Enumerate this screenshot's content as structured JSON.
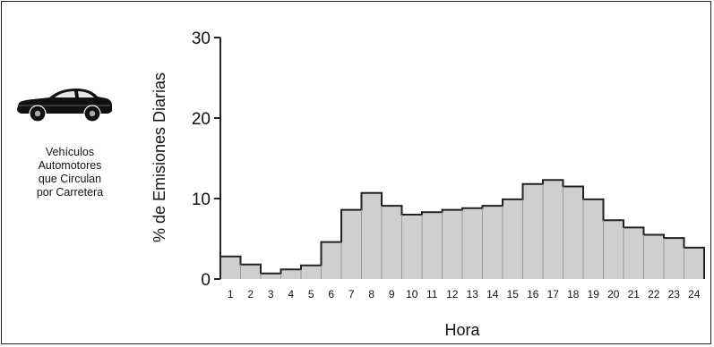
{
  "legend": {
    "icon": "car-icon",
    "caption_lines": [
      "Vehículos",
      "Automotores",
      "que Circulan",
      "por Carretera"
    ]
  },
  "chart_data": {
    "type": "bar",
    "title": "",
    "xlabel": "Hora",
    "ylabel": "% de Emisiones Diarias",
    "ylim": [
      0,
      30
    ],
    "yticks": [
      0,
      10,
      20,
      30
    ],
    "categories": [
      "1",
      "2",
      "3",
      "4",
      "5",
      "6",
      "7",
      "8",
      "9",
      "10",
      "11",
      "12",
      "13",
      "14",
      "15",
      "16",
      "17",
      "18",
      "19",
      "20",
      "21",
      "22",
      "23",
      "24"
    ],
    "values": [
      2.8,
      1.8,
      0.7,
      1.2,
      1.7,
      4.6,
      8.6,
      10.7,
      9.1,
      8.0,
      8.3,
      8.6,
      8.8,
      9.1,
      9.9,
      11.8,
      12.3,
      11.5,
      9.9,
      7.3,
      6.4,
      5.5,
      5.1,
      3.9
    ],
    "fill_color": "#cfcfcf",
    "line_color": "#222222",
    "grid": false
  }
}
